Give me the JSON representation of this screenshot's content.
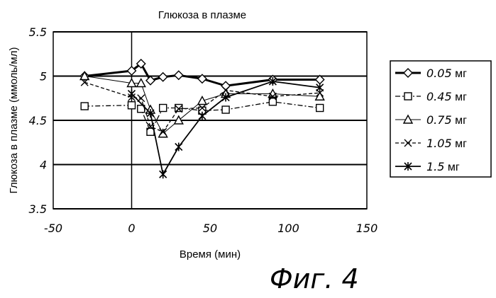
{
  "figure_caption": "Фиг. 4",
  "chart_data": {
    "type": "line",
    "title": "Глюкоза в плазме",
    "xlabel": "Время (мин)",
    "ylabel": "Глюкоза в плазме (ммоль/мл)",
    "xlim": [
      -50,
      150
    ],
    "ylim": [
      3.5,
      5.5
    ],
    "x_ticks": [
      "-50",
      "0",
      "50",
      "100",
      "150"
    ],
    "y_ticks": [
      "3.5",
      "4",
      "4.5",
      "5",
      "5.5"
    ],
    "grid": "horizontal",
    "legend_position": "right",
    "series": [
      {
        "name": "0.05 мг",
        "marker": "diamond",
        "line": "solid-bold",
        "x": [
          -30,
          0,
          6,
          12,
          20,
          30,
          45,
          60,
          90,
          120
        ],
        "y": [
          5.0,
          5.06,
          5.14,
          4.95,
          4.99,
          5.01,
          4.97,
          4.89,
          4.96,
          4.96
        ]
      },
      {
        "name": "0.45 мг",
        "marker": "square",
        "line": "dash-dot",
        "x": [
          -30,
          0,
          6,
          12,
          20,
          30,
          45,
          60,
          90,
          120
        ],
        "y": [
          4.66,
          4.67,
          4.63,
          4.37,
          4.64,
          4.64,
          4.61,
          4.62,
          4.71,
          4.64
        ]
      },
      {
        "name": "0.75 мг",
        "marker": "triangle",
        "line": "thin",
        "x": [
          -30,
          0,
          6,
          12,
          20,
          30,
          45,
          60,
          90,
          120
        ],
        "y": [
          5.0,
          4.92,
          4.92,
          4.62,
          4.35,
          4.5,
          4.72,
          4.8,
          4.8,
          4.77
        ]
      },
      {
        "name": "1.05 мг",
        "marker": "x",
        "line": "dashed",
        "x": [
          -30,
          0,
          6,
          12,
          20,
          30,
          45,
          60,
          90,
          120
        ],
        "y": [
          4.93,
          4.76,
          4.75,
          4.43,
          4.37,
          4.63,
          4.64,
          4.84,
          4.77,
          4.81
        ]
      },
      {
        "name": "1.5 мг",
        "marker": "star",
        "line": "solid",
        "x": [
          0,
          12,
          20,
          30,
          45,
          60,
          90,
          120
        ],
        "y": [
          4.8,
          4.58,
          3.89,
          4.2,
          4.55,
          4.76,
          4.94,
          4.87
        ]
      }
    ]
  }
}
